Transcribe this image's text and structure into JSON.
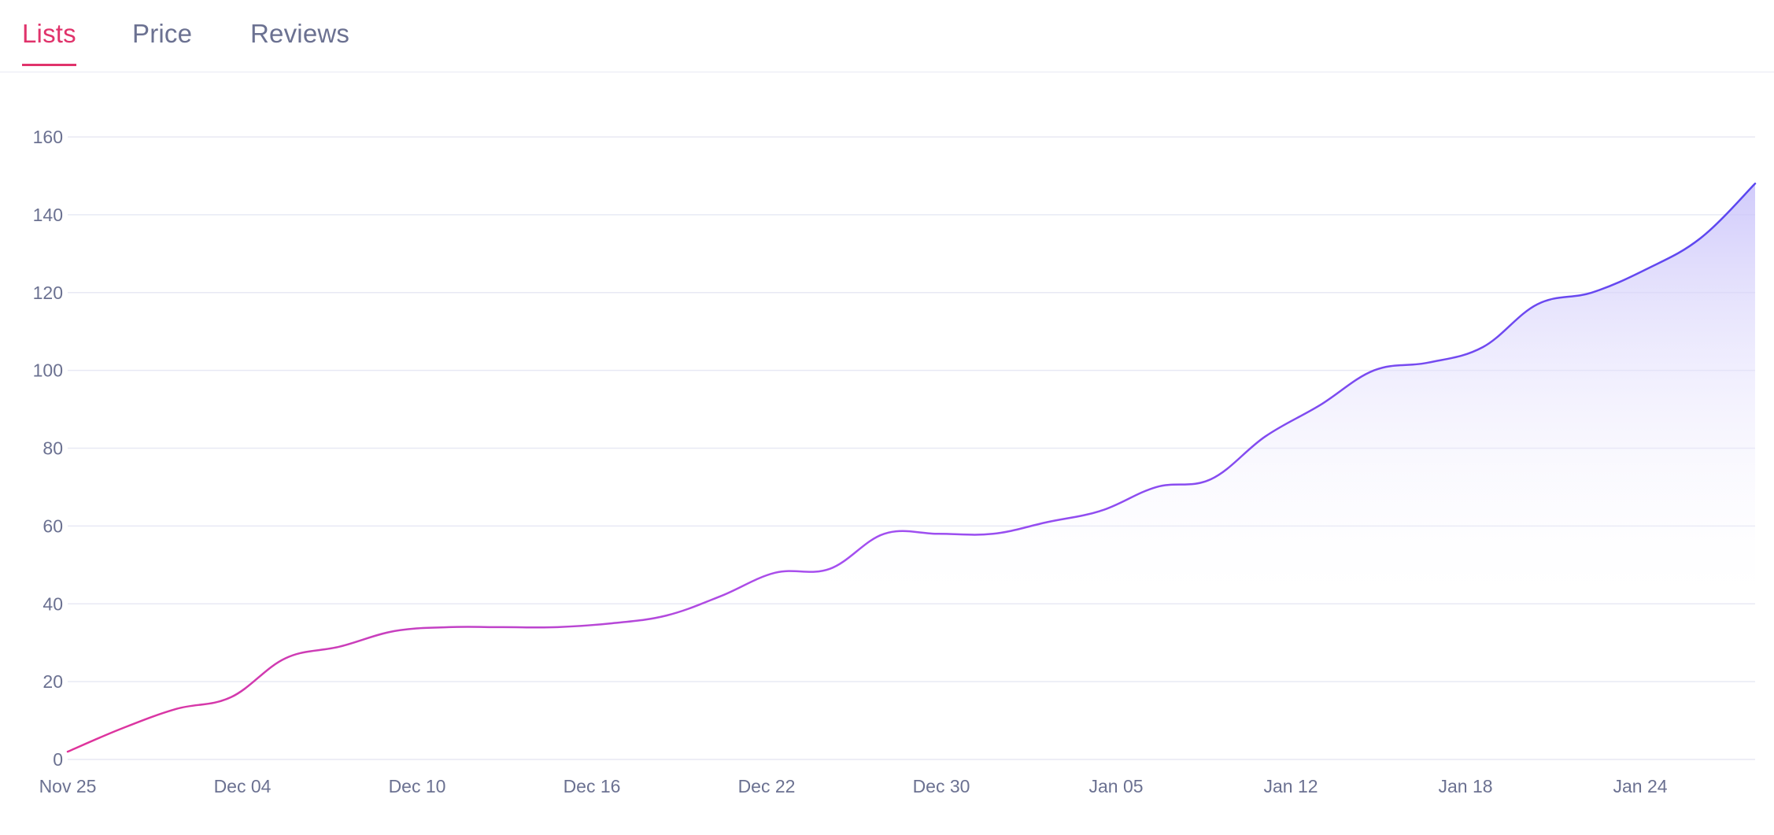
{
  "tabs": [
    {
      "label": "Lists",
      "active": true
    },
    {
      "label": "Price",
      "active": false
    },
    {
      "label": "Reviews",
      "active": false
    }
  ],
  "colors": {
    "active_tab": "#e0336b",
    "inactive_tab": "#6b7191",
    "grid": "#e8e9f4",
    "line_start": "#e0339a",
    "line_mid": "#a64ff0",
    "line_end": "#5a47f0",
    "area_top": "#c9c2fa",
    "axis_text": "#6b7191"
  },
  "chart_data": {
    "type": "area",
    "title": "",
    "xlabel": "",
    "ylabel": "",
    "ylim": [
      0,
      160
    ],
    "yticks": [
      0,
      20,
      40,
      60,
      80,
      100,
      120,
      140,
      160
    ],
    "xtick_labels": [
      "Nov 25",
      "Dec 04",
      "Dec 10",
      "Dec 16",
      "Dec 22",
      "Dec 30",
      "Jan 05",
      "Jan 12",
      "Jan 18",
      "Jan 24"
    ],
    "grid": true,
    "legend": "none",
    "series": [
      {
        "values": [
          2,
          8,
          13,
          16,
          26,
          29,
          33,
          34,
          34,
          34,
          35,
          37,
          42,
          48,
          49,
          58,
          58,
          58,
          61,
          64,
          70,
          72,
          83,
          91,
          100,
          102,
          106,
          117,
          120,
          126,
          134,
          148
        ]
      }
    ]
  }
}
